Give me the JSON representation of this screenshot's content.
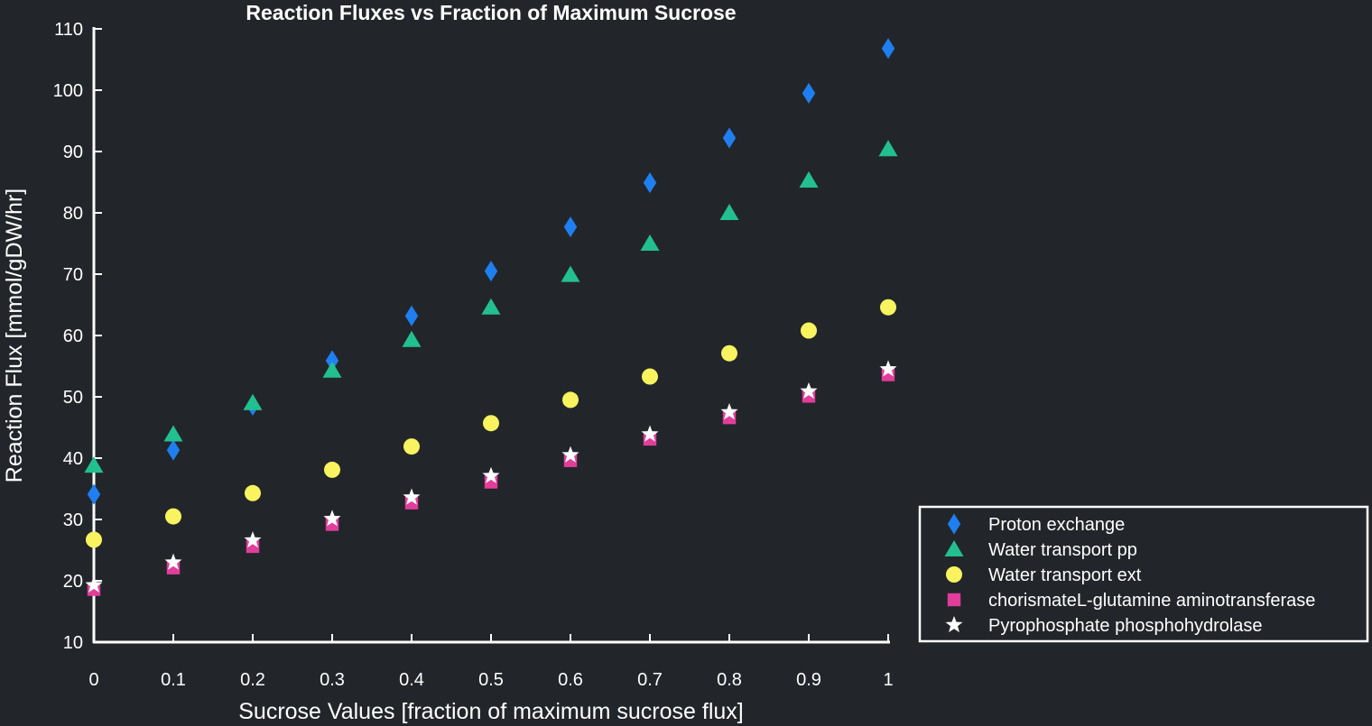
{
  "chart_data": {
    "type": "scatter",
    "title": "Reaction Fluxes vs Fraction of Maximum Sucrose",
    "xlabel": "Sucrose Values [fraction of maximum sucrose flux]",
    "ylabel": "Reaction Flux [mmol/gDW/hr]",
    "xlim": [
      0,
      1
    ],
    "ylim": [
      10,
      110
    ],
    "x_ticks": [
      0,
      0.1,
      0.2,
      0.3,
      0.4,
      0.5,
      0.6,
      0.7,
      0.8,
      0.9,
      1
    ],
    "y_ticks": [
      10,
      20,
      30,
      40,
      50,
      60,
      70,
      80,
      90,
      100,
      110
    ],
    "x": [
      0,
      0.1,
      0.2,
      0.3,
      0.4,
      0.5,
      0.6,
      0.7,
      0.8,
      0.9,
      1
    ],
    "grid": false,
    "legend_position": "bottom-right, outside plot",
    "series": [
      {
        "name": "Proton exchange",
        "marker": "diamond",
        "color": "#1f7ff0",
        "values": [
          34.1,
          41.3,
          48.6,
          55.9,
          63.2,
          70.5,
          77.7,
          84.9,
          92.2,
          99.5,
          106.8
        ]
      },
      {
        "name": "Water transport pp",
        "marker": "triangle",
        "color": "#23c08f",
        "values": [
          38.8,
          43.9,
          49.0,
          54.3,
          59.3,
          64.6,
          69.9,
          75.0,
          80.0,
          85.3,
          90.4
        ]
      },
      {
        "name": "Water transport ext",
        "marker": "circle",
        "color": "#f8f35f",
        "values": [
          26.7,
          30.5,
          34.3,
          38.1,
          41.9,
          45.7,
          49.5,
          53.3,
          57.1,
          60.8,
          64.6
        ]
      },
      {
        "name": "chorismateL-glutamine aminotransferase",
        "marker": "square",
        "color": "#e23d9a",
        "values": [
          18.6,
          22.1,
          25.6,
          29.2,
          32.7,
          36.1,
          39.6,
          43.1,
          46.6,
          50.1,
          53.6
        ]
      },
      {
        "name": "Pyrophosphate phosphohydrolase",
        "marker": "star",
        "color": "#ffffff",
        "values": [
          19.3,
          23.0,
          26.6,
          30.1,
          33.6,
          37.1,
          40.5,
          43.9,
          47.5,
          50.9,
          54.5
        ]
      }
    ]
  }
}
